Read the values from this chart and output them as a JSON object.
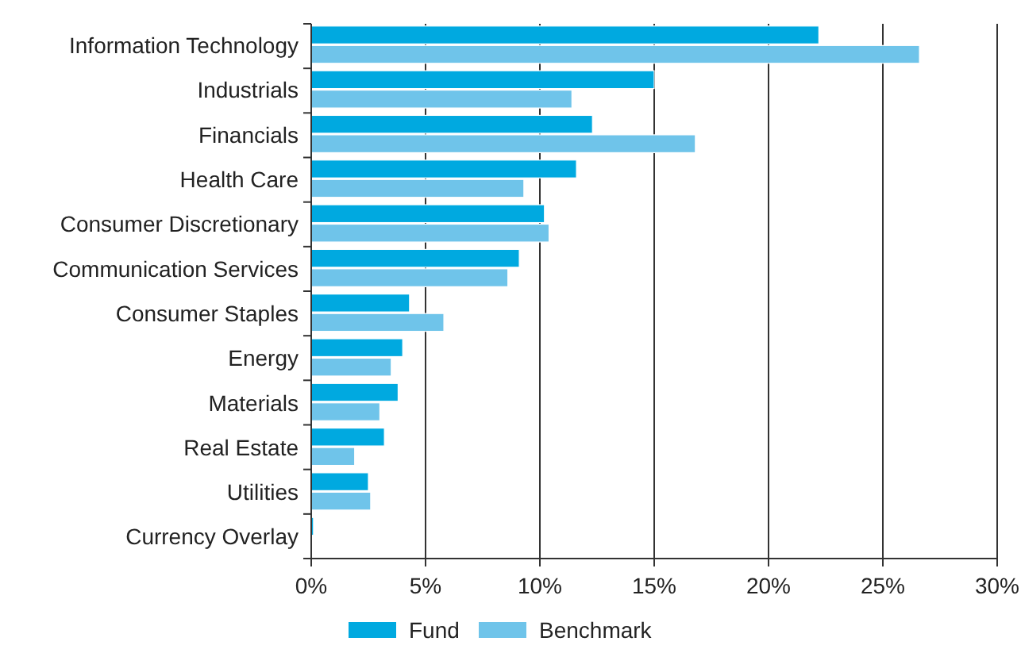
{
  "chart_data": {
    "type": "bar",
    "orientation": "horizontal",
    "categories": [
      "Information Technology",
      "Industrials",
      "Financials",
      "Health Care",
      "Consumer Discretionary",
      "Communication Services",
      "Consumer Staples",
      "Energy",
      "Materials",
      "Real Estate",
      "Utilities",
      "Currency Overlay"
    ],
    "series": [
      {
        "name": "Fund",
        "color": "#00a9e0",
        "values": [
          22.2,
          15.0,
          12.3,
          11.6,
          10.2,
          9.1,
          4.3,
          4.0,
          3.8,
          3.2,
          2.5,
          0.1
        ]
      },
      {
        "name": "Benchmark",
        "color": "#6fc4ea",
        "values": [
          26.6,
          11.4,
          16.8,
          9.3,
          10.4,
          8.6,
          5.8,
          3.5,
          3.0,
          1.9,
          2.6,
          null
        ]
      }
    ],
    "xlim": [
      0,
      30
    ],
    "xticks": [
      {
        "value": 0,
        "label": "0%"
      },
      {
        "value": 5,
        "label": "5%"
      },
      {
        "value": 10,
        "label": "10%"
      },
      {
        "value": 15,
        "label": "15%"
      },
      {
        "value": 20,
        "label": "20%"
      },
      {
        "value": 25,
        "label": "25%"
      },
      {
        "value": 30,
        "label": "30%"
      }
    ],
    "grid": "x",
    "legend": "bottom"
  }
}
